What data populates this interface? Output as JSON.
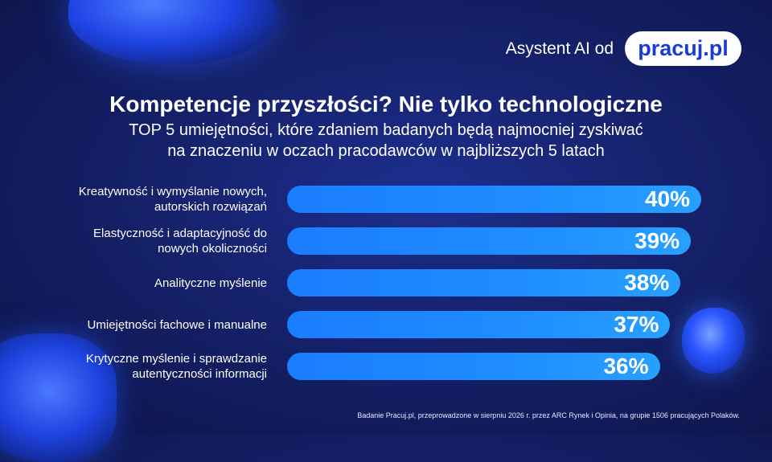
{
  "brand": {
    "label": "Asystent AI od",
    "logo_text": "pracuj.pl"
  },
  "header": {
    "title": "Kompetencje przyszłości? Nie tylko technologiczne",
    "subtitle_line1": "TOP 5 umiejętności, które zdaniem badanych będą najmocniej zyskiwać",
    "subtitle_line2": "na znaczeniu w oczach pracodawców w najbliższych 5 latach"
  },
  "chart_data": {
    "type": "bar",
    "orientation": "horizontal",
    "categories": [
      [
        "Kreatywność i wymyślanie nowych,",
        "autorskich rozwiązań"
      ],
      [
        "Elastyczność i adaptacyjność do",
        "nowych okoliczności"
      ],
      [
        "Analityczne myślenie"
      ],
      [
        "Umiejętności fachowe i manualne"
      ],
      [
        "Krytyczne myślenie i sprawdzanie",
        "autentyczności informacji"
      ]
    ],
    "values": [
      40,
      39,
      38,
      37,
      36
    ],
    "value_labels": [
      "40%",
      "39%",
      "38%",
      "37%",
      "36%"
    ],
    "unit": "%",
    "bar_color": "#1f8dff",
    "grid": false
  },
  "footnote": "Badanie Pracuj.pl, przeprowadzone w sierpniu 2026 r. przez ARC Rynek i Opinia, na grupie 1506  pracujących Polaków."
}
